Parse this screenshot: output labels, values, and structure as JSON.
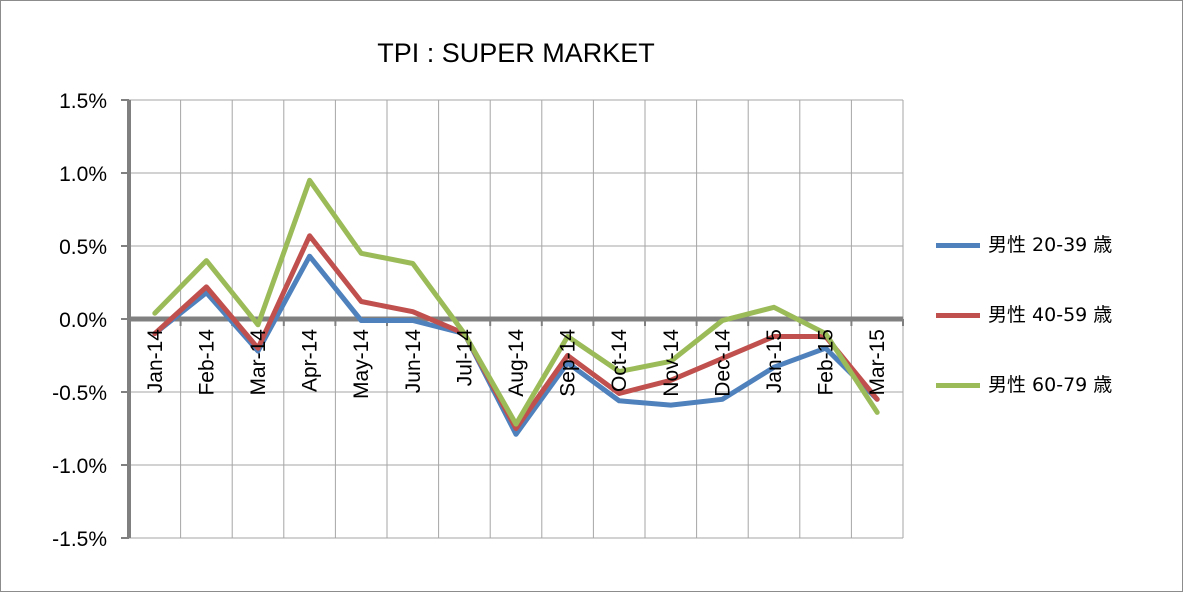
{
  "chart_data": {
    "type": "line",
    "title": "TPI : SUPER MARKET",
    "xlabel": "",
    "ylabel": "",
    "categories": [
      "Jan-14",
      "Feb-14",
      "Mar-14",
      "Apr-14",
      "May-14",
      "Jun-14",
      "Jul-14",
      "Aug-14",
      "Sep-14",
      "Oct-14",
      "Nov-14",
      "Dec-14",
      "Jan-15",
      "Feb-15",
      "Mar-15"
    ],
    "ylim": [
      -1.5,
      1.5
    ],
    "yticks": [
      1.5,
      1.0,
      0.5,
      0.0,
      -0.5,
      -1.0,
      -1.5
    ],
    "ytick_labels": [
      "1.5%",
      "1.0%",
      "0.5%",
      "0.0%",
      "-0.5%",
      "-1.0%",
      "-1.5%"
    ],
    "grid": true,
    "legend_position": "right",
    "series": [
      {
        "name": "男性 20-39 歳",
        "color": "#4f81bd",
        "values": [
          -0.1,
          0.18,
          -0.22,
          0.43,
          -0.01,
          -0.01,
          -0.1,
          -0.79,
          -0.3,
          -0.56,
          -0.59,
          -0.55,
          -0.33,
          -0.2,
          -0.55
        ]
      },
      {
        "name": "男性 40-59 歳",
        "color": "#c0504d",
        "values": [
          -0.1,
          0.22,
          -0.2,
          0.57,
          0.12,
          0.05,
          -0.1,
          -0.75,
          -0.25,
          -0.51,
          -0.42,
          -0.27,
          -0.12,
          -0.12,
          -0.55
        ]
      },
      {
        "name": "男性 60-79 歳",
        "color": "#9bbb59",
        "values": [
          0.04,
          0.4,
          -0.04,
          0.95,
          0.45,
          0.38,
          -0.1,
          -0.72,
          -0.12,
          -0.36,
          -0.29,
          -0.01,
          0.08,
          -0.1,
          -0.64
        ]
      }
    ]
  }
}
